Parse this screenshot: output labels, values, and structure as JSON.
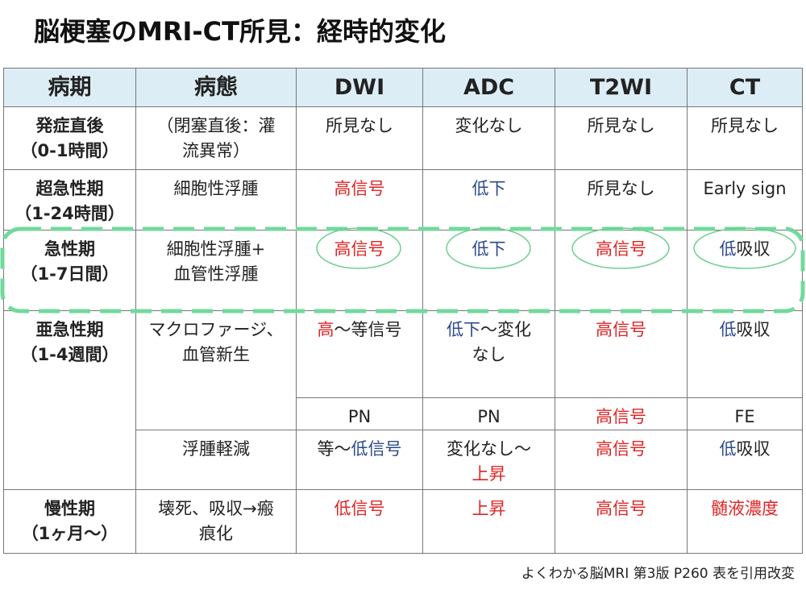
{
  "title": "脳梗塞のMRI-CT所見：経時的変化",
  "table": {
    "header": [
      "病期",
      "病態",
      "DWI",
      "ADC",
      "T2WI",
      "CT"
    ],
    "rows": [
      {
        "stage": "発症直後\n（0-1時間）",
        "pathology": [
          {
            "text": "（閉塞直後：灌\n流異常）"
          }
        ],
        "findings": [
          [
            {
              "text": "所見なし"
            }
          ],
          [
            {
              "text": "変化なし"
            }
          ],
          [
            {
              "text": "所見なし"
            }
          ],
          [
            {
              "text": "所見なし"
            }
          ]
        ]
      },
      {
        "stage": "超急性期\n（1-24時間）",
        "pathology": [
          {
            "text": "細胞性浮腫"
          }
        ],
        "findings": [
          [
            {
              "text": "高信号",
              "color": "#e02424"
            }
          ],
          [
            {
              "text": "低下",
              "color": "#2b4a8c"
            }
          ],
          [
            {
              "text": "所見なし"
            }
          ],
          [
            {
              "text": "Early sign"
            }
          ]
        ]
      },
      {
        "stage": "急性期\n（1-7日間）",
        "pathology": [
          {
            "text": "細胞性浮腫+\n血管性浮腫"
          }
        ],
        "findings": [
          [
            {
              "text": "高信号",
              "color": "#e02424"
            }
          ],
          [
            {
              "text": "低下",
              "color": "#2b4a8c"
            }
          ],
          [
            {
              "text": "高信号",
              "color": "#e02424"
            }
          ],
          [
            {
              "text": "低",
              "color": "#2b4a8c"
            },
            {
              "text": "吸収"
            }
          ]
        ]
      },
      {
        "stage": "亜急性期\n（1-4週間）",
        "subrows": [
          {
            "pathology": [
              {
                "text": "マクロファージ、\n血管新生"
              }
            ],
            "findings": [
              [
                {
                  "text": "高",
                  "color": "#e02424"
                },
                {
                  "text": "〜等信号"
                }
              ],
              [
                {
                  "text": "低下",
                  "color": "#2b4a8c"
                },
                {
                  "text": "〜変化\nなし"
                }
              ],
              [
                {
                  "text": "高信号",
                  "color": "#e02424"
                }
              ],
              [
                {
                  "text": "低",
                  "color": "#2b4a8c"
                },
                {
                  "text": "吸収"
                }
              ]
            ]
          },
          {
            "findings": [
              [
                {
                  "text": "PN"
                }
              ],
              [
                {
                  "text": "PN"
                }
              ],
              [
                {
                  "text": "高信号",
                  "color": "#e02424"
                }
              ],
              [
                {
                  "text": "FE"
                }
              ]
            ]
          },
          {
            "pathology": [
              {
                "text": "浮腫軽減"
              }
            ],
            "findings": [
              [
                {
                  "text": "等〜"
                },
                {
                  "text": "低信号",
                  "color": "#2b4a8c"
                }
              ],
              [
                {
                  "text": "変化なし〜\n"
                },
                {
                  "text": "上昇",
                  "color": "#e02424"
                }
              ],
              [
                {
                  "text": "高信号",
                  "color": "#e02424"
                }
              ],
              [
                {
                  "text": "低",
                  "color": "#2b4a8c"
                },
                {
                  "text": "吸収"
                }
              ]
            ]
          }
        ]
      },
      {
        "stage": "慢性期\n（1ヶ月〜）",
        "pathology": [
          {
            "text": "壊死、吸収→瘢\n痕化"
          }
        ],
        "findings": [
          [
            {
              "text": "低信号",
              "color": "#e02424"
            }
          ],
          [
            {
              "text": "上昇",
              "color": "#e02424"
            }
          ],
          [
            {
              "text": "高信号",
              "color": "#e02424"
            }
          ],
          [
            {
              "text": "髄液濃度",
              "color": "#e02424"
            }
          ]
        ]
      }
    ]
  },
  "source": "よくわかる脳MRI 第3版 P260 表を引用改変"
}
